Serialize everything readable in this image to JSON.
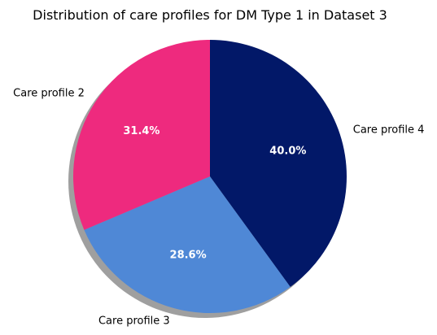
{
  "chart_data": {
    "type": "pie",
    "title": "Distribution of care profiles for DM Type 1 in Dataset 3",
    "slices": [
      {
        "label": "Care profile 4",
        "value": 40.0,
        "pct_label": "40.0%",
        "color": "#021868"
      },
      {
        "label": "Care profile 3",
        "value": 28.6,
        "pct_label": "28.6%",
        "color": "#4f88d6"
      },
      {
        "label": "Care profile 2",
        "value": 31.4,
        "pct_label": "31.4%",
        "color": "#ee2a7e"
      }
    ],
    "start_angle_deg": 90,
    "direction": "clockwise",
    "shadow": true
  }
}
